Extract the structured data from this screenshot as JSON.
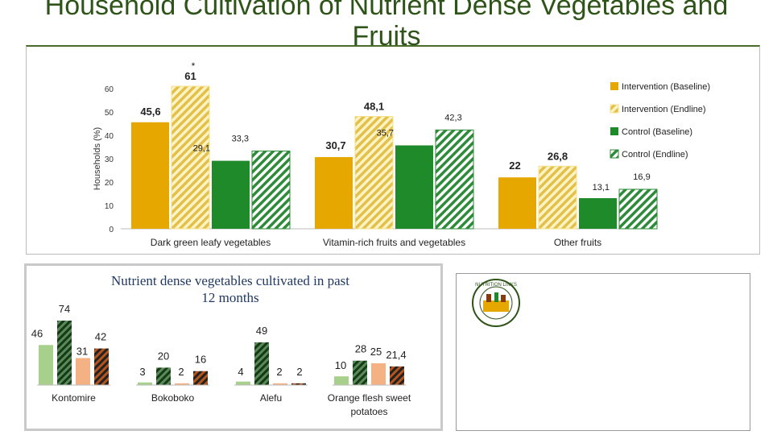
{
  "title": {
    "line1": "Household Cultivation of Nutrient Dense Vegetables and",
    "line2": "Fruits"
  },
  "logo": {
    "text": "NUTRITION LINKS"
  },
  "chart_data": [
    {
      "type": "bar",
      "title": "",
      "ylabel": "Households (%)",
      "xlabel": "",
      "ylim": [
        0,
        60
      ],
      "yticks": [
        "0",
        "10",
        "20",
        "30",
        "40",
        "50",
        "60"
      ],
      "categories": [
        "Dark green leafy vegetables",
        "Vitamin-rich fruits and vegetables",
        "Other fruits"
      ],
      "annotation": "*",
      "legend_position": "right",
      "series": [
        {
          "name": "Intervention (Baseline)",
          "values": [
            45.6,
            30.7,
            22
          ],
          "labels": [
            "45,6",
            "30,7",
            "22"
          ],
          "color": "#e6a800",
          "pattern": "solid"
        },
        {
          "name": "Intervention (Endline)",
          "values": [
            61,
            48.1,
            26.8
          ],
          "labels": [
            "61",
            "48,1",
            "26,8"
          ],
          "color": "#f7e08a",
          "pattern": "hatch-yellow"
        },
        {
          "name": "Control (Baseline)",
          "values": [
            29.1,
            35.7,
            13.1
          ],
          "labels": [
            "29,1",
            "35,7",
            "13,1"
          ],
          "color": "#1f8a2a",
          "pattern": "solid"
        },
        {
          "name": "Control (Endline)",
          "values": [
            33.3,
            42.3,
            16.9
          ],
          "labels": [
            "33,3",
            "42,3",
            "16,9"
          ],
          "color": "#2e8b3a",
          "pattern": "hatch-green"
        }
      ]
    },
    {
      "type": "bar",
      "title": "Nutrient dense vegetables cultivated in past 12 months",
      "title_lines": [
        "Nutrient dense vegetables cultivated in past",
        "12 months"
      ],
      "ylim": [
        0,
        80
      ],
      "categories": [
        "Kontomire",
        "Bokoboko",
        "Alefu",
        "Orange flesh sweet potatoes"
      ],
      "category_lines": [
        [
          "Kontomire"
        ],
        [
          "Bokoboko"
        ],
        [
          "Alefu"
        ],
        [
          "Orange flesh sweet",
          "potatoes"
        ]
      ],
      "series": [
        {
          "name": "Intervention (Baseline)",
          "values": [
            46,
            3,
            4,
            10
          ],
          "labels": [
            "46",
            "3",
            "4",
            "10"
          ],
          "color": "#a8d08d",
          "pattern": "solid"
        },
        {
          "name": "Intervention (Endline)",
          "values": [
            74,
            20,
            49,
            28
          ],
          "labels": [
            "74",
            "20",
            "49",
            "28"
          ],
          "color": "#1e4d1e",
          "pattern": "hatch-dark"
        },
        {
          "name": "Control (Baseline)",
          "values": [
            31,
            2,
            2,
            25
          ],
          "labels": [
            "31",
            "2",
            "2",
            "25"
          ],
          "color": "#f4b183",
          "pattern": "solid"
        },
        {
          "name": "Control (Endline)",
          "values": [
            42,
            16,
            2,
            21.4
          ],
          "labels": [
            "42",
            "16",
            "2",
            "21,4"
          ],
          "color": "#843c0c",
          "pattern": "hatch-brown"
        }
      ]
    }
  ]
}
